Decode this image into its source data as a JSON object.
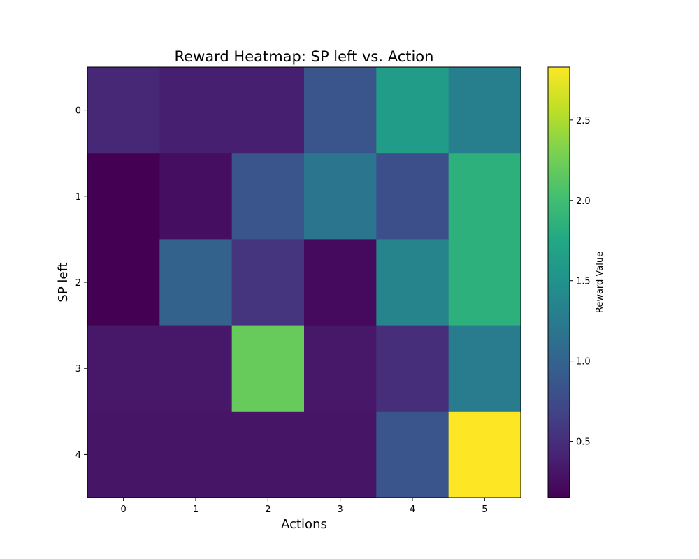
{
  "chart_data": {
    "type": "heatmap",
    "title": "Reward Heatmap: SP left vs. Action",
    "xlabel": "Actions",
    "ylabel": "SP left",
    "x_categories": [
      "0",
      "1",
      "2",
      "3",
      "4",
      "5"
    ],
    "y_categories": [
      "0",
      "1",
      "2",
      "3",
      "4"
    ],
    "values": [
      [
        0.45,
        0.38,
        0.38,
        0.85,
        1.62,
        1.3
      ],
      [
        0.15,
        0.25,
        0.85,
        1.2,
        0.8,
        1.85
      ],
      [
        0.15,
        1.0,
        0.55,
        0.22,
        1.35,
        1.85
      ],
      [
        0.32,
        0.32,
        2.2,
        0.32,
        0.5,
        1.25
      ],
      [
        0.3,
        0.3,
        0.3,
        0.3,
        0.85,
        2.83
      ]
    ],
    "colormap": "viridis",
    "colorbar": {
      "label": "Reward Value",
      "range": [
        0.15,
        2.83
      ],
      "ticks": [
        0.5,
        1.0,
        1.5,
        2.0,
        2.5
      ],
      "tick_labels": [
        "0.5",
        "1.0",
        "1.5",
        "2.0",
        "2.5"
      ]
    },
    "grid": false
  }
}
